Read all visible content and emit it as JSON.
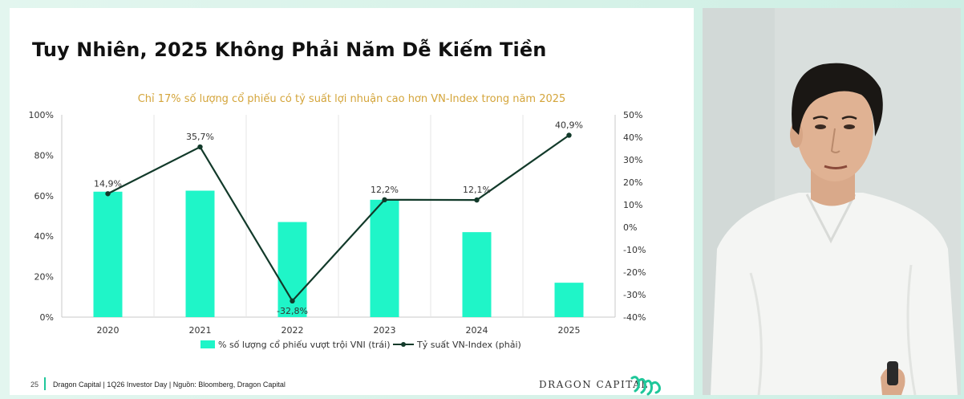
{
  "slide": {
    "title": "Tuy Nhiên, 2025 Không Phải Năm Dễ Kiếm Tiền",
    "footer": {
      "page": "25",
      "text": "Dragon Capital | 1Q26 Investor Day | Nguồn: Bloomberg, Dragon Capital",
      "logo_text": "DRAGON CAPITAL"
    }
  },
  "colors": {
    "bar": "#1ff5c8",
    "line": "#123a2a",
    "title_accent": "#d4a53b",
    "footer_accent": "#1fc79a"
  },
  "chart_data": {
    "type": "bar",
    "title": "Chỉ 17% số lượng cổ phiếu có tỷ suất lợi nhuận cao hơn VN-Index trong năm 2025",
    "categories": [
      "2020",
      "2021",
      "2022",
      "2023",
      "2024",
      "2025"
    ],
    "series": [
      {
        "name": "% số lượng cổ phiếu vượt trội VNI (trái)",
        "type": "bar",
        "axis": "left",
        "values": [
          62,
          62.5,
          47,
          58,
          42,
          17
        ]
      },
      {
        "name": "Tỷ suất VN-Index (phải)",
        "type": "line",
        "axis": "right",
        "values": [
          14.9,
          35.7,
          -32.8,
          12.2,
          12.1,
          40.9
        ],
        "labels": [
          "14,9%",
          "35,7%",
          "-32,8%",
          "12,2%",
          "12,1%",
          "40,9%"
        ]
      }
    ],
    "left_axis": {
      "ylim": [
        0,
        100
      ],
      "ticks": [
        0,
        20,
        40,
        60,
        80,
        100
      ],
      "tick_labels": [
        "0%",
        "20%",
        "40%",
        "60%",
        "80%",
        "100%"
      ]
    },
    "right_axis": {
      "ylim": [
        -40,
        50
      ],
      "ticks": [
        -40,
        -30,
        -20,
        -10,
        0,
        10,
        20,
        30,
        40,
        50
      ],
      "tick_labels": [
        "-40%",
        "-30%",
        "-20%",
        "-10%",
        "0%",
        "10%",
        "20%",
        "30%",
        "40%",
        "50%"
      ]
    },
    "grid": "vertical",
    "legend_position": "bottom"
  }
}
